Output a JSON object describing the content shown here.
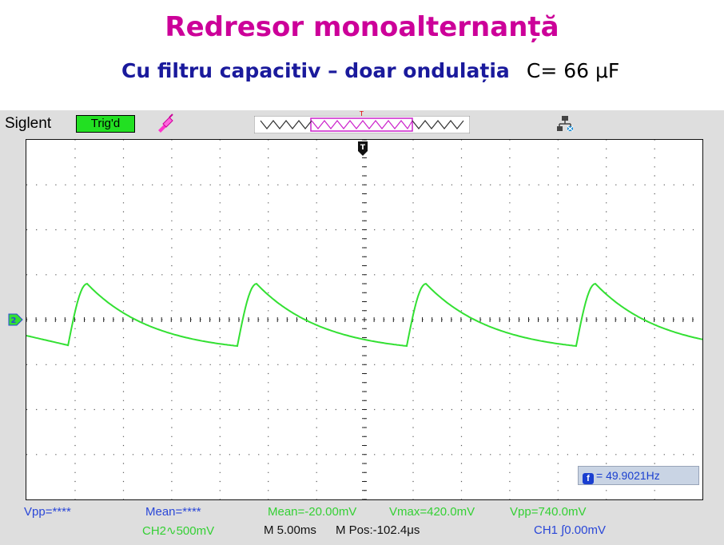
{
  "slide": {
    "title": "Redresor monoalternanță",
    "subtitle": "Cu filtru capacitiv – doar ondulația",
    "capacitance": "C= 66 μF"
  },
  "scope": {
    "brand": "Siglent",
    "trigger_status": "Trig'd",
    "trigger_top_marker": "T",
    "frequency_readout": "= 49.9021Hz",
    "measurements": {
      "ch1_vpp": "Vpp=****",
      "ch1_mean": "Mean=****",
      "ch2_mean": "Mean=-20.00mV",
      "ch2_vmax": "Vmax=420.0mV",
      "ch2_vpp": "Vpp=740.0mV"
    },
    "status": {
      "ch2_scale": "CH2∿500mV",
      "timebase": "M 5.00ms",
      "mpos": "M Pos:-102.4μs",
      "ch1_trigger": "CH1 ∫0.00mV"
    },
    "trace_color": "#33e033",
    "measurement_blue": "#2a47d8",
    "trig_box_color": "#22e022",
    "icons": [
      "probe-icon",
      "network-icon",
      "trigger-marker-icon",
      "channel-marker-icon",
      "frequency-icon"
    ]
  }
}
